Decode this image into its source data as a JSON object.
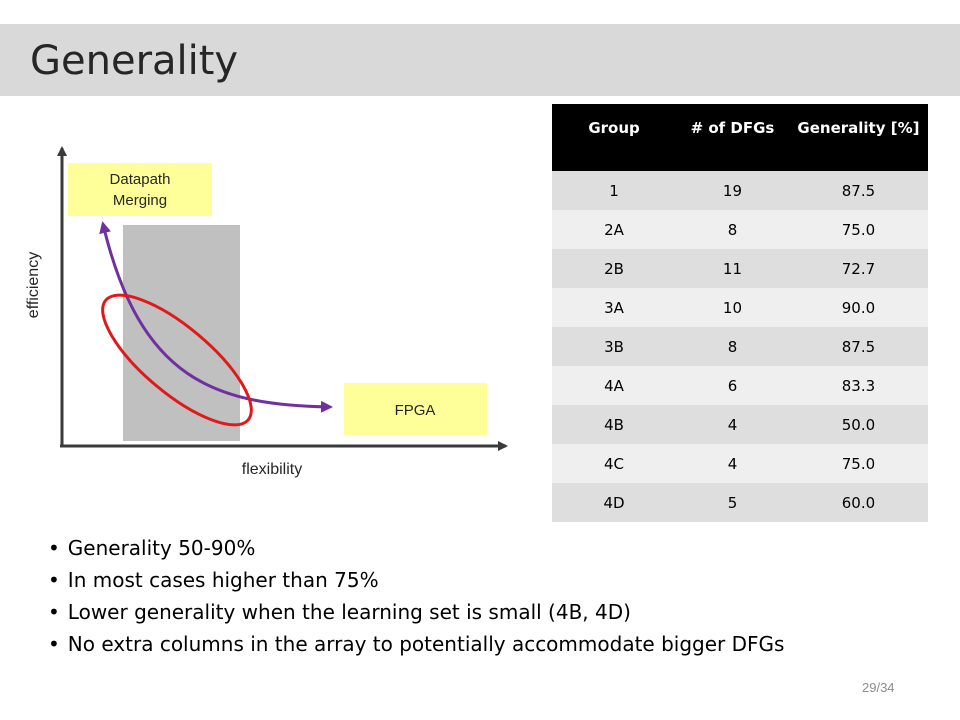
{
  "slide": {
    "title": "Generality",
    "page_number": "29/34"
  },
  "diagram": {
    "y_axis_label": "efficiency",
    "x_axis_label": "flexibility",
    "top_box_line1": "Datapath",
    "top_box_line2": "Merging",
    "bottom_box_label": "FPGA",
    "colors": {
      "curve": "#7030a0",
      "ellipse": "#e0191a",
      "box_fill": "#ffff99",
      "bar_fill": "#c0c0c0"
    }
  },
  "table": {
    "headers": [
      "Group",
      "# of DFGs",
      "Generality [%]"
    ],
    "rows": [
      [
        "1",
        "19",
        "87.5"
      ],
      [
        "2A",
        "8",
        "75.0"
      ],
      [
        "2B",
        "11",
        "72.7"
      ],
      [
        "3A",
        "10",
        "90.0"
      ],
      [
        "3B",
        "8",
        "87.5"
      ],
      [
        "4A",
        "6",
        "83.3"
      ],
      [
        "4B",
        "4",
        "50.0"
      ],
      [
        "4C",
        "4",
        "75.0"
      ],
      [
        "4D",
        "5",
        "60.0"
      ]
    ]
  },
  "bullets": [
    "Generality 50-90%",
    "In most cases higher than 75%",
    "Lower generality when the learning set is small (4B, 4D)",
    "No extra columns in the array to potentially accommodate bigger DFGs"
  ]
}
